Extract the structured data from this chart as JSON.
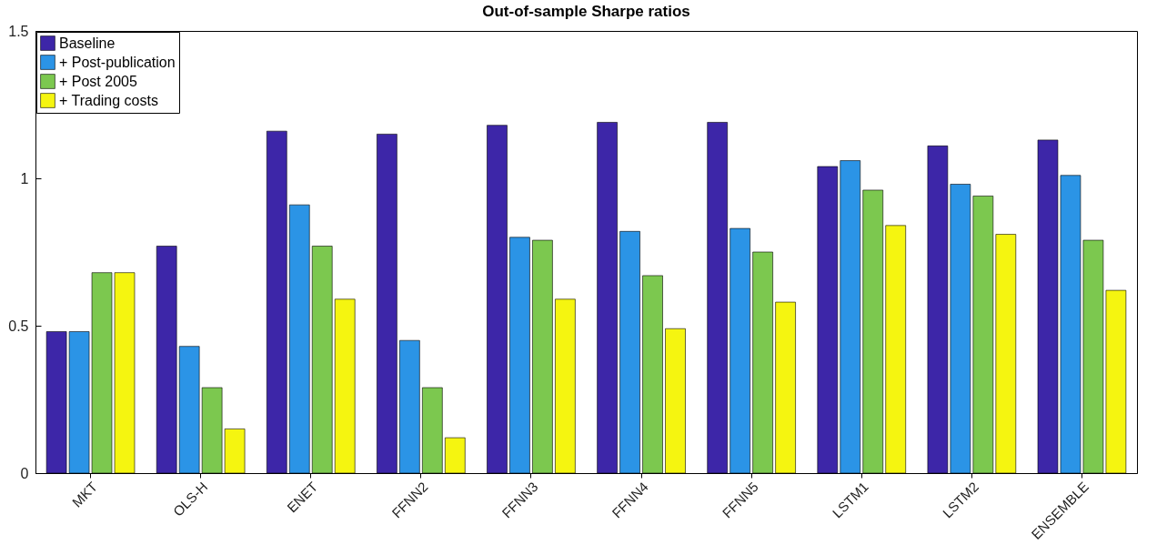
{
  "chart_data": {
    "type": "bar",
    "title": "Out-of-sample Sharpe ratios",
    "categories": [
      "MKT",
      "OLS-H",
      "ENET",
      "FFNN2",
      "FFNN3",
      "FFNN4",
      "FFNN5",
      "LSTM1",
      "LSTM2",
      "ENSEMBLE"
    ],
    "series": [
      {
        "name": "Baseline",
        "color": "#3d26a8",
        "values": [
          0.48,
          0.77,
          1.16,
          1.15,
          1.18,
          1.19,
          1.19,
          1.04,
          1.11,
          1.13
        ]
      },
      {
        "name": "+ Post-publication",
        "color": "#2b94e6",
        "values": [
          0.48,
          0.43,
          0.91,
          0.45,
          0.8,
          0.82,
          0.83,
          1.06,
          0.98,
          1.01
        ]
      },
      {
        "name": "+ Post 2005",
        "color": "#7cc84f",
        "values": [
          0.68,
          0.29,
          0.77,
          0.29,
          0.79,
          0.67,
          0.75,
          0.96,
          0.94,
          0.79
        ]
      },
      {
        "name": "+ Trading costs",
        "color": "#f5f510",
        "values": [
          0.68,
          0.15,
          0.59,
          0.12,
          0.59,
          0.49,
          0.58,
          0.84,
          0.81,
          0.62
        ]
      }
    ],
    "ylim": [
      0,
      1.5
    ],
    "yticks": [
      0,
      0.5,
      1,
      1.5
    ],
    "grid": false,
    "legend": "top left"
  }
}
